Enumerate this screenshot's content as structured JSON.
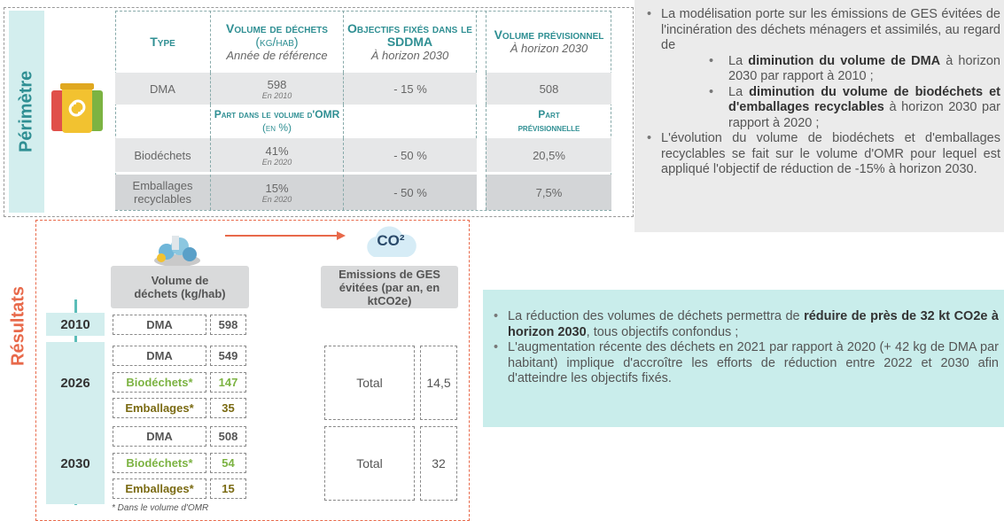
{
  "perimetre": {
    "label": "Périmètre",
    "table": {
      "header": [
        {
          "title": "Type"
        },
        {
          "title": "Volume de déchets",
          "unit": "(kg/hab)",
          "note": "Année de référence"
        },
        {
          "title": "Objectifs fixés dans le SDDMA",
          "note": "À horizon 2030"
        },
        {
          "title": "Volume prévisionnel",
          "note": "À horizon 2030"
        }
      ],
      "subheader": {
        "volume": "Part dans le volume d'OMR",
        "volume_unit": "(en %)",
        "forecast": "Part prévisionnelle"
      },
      "rows": [
        {
          "type": "DMA",
          "volume": "598",
          "volume_note": "En 2010",
          "objective": "- 15 %",
          "forecast": "508"
        },
        {
          "type": "Biodéchets",
          "volume": "41%",
          "volume_note": "En 2020",
          "objective": "- 50 %",
          "forecast": "20,5%"
        },
        {
          "type": "Emballages recyclables",
          "volume": "15%",
          "volume_note": "En 2020",
          "objective": "- 50 %",
          "forecast": "7,5%"
        }
      ]
    }
  },
  "summary": {
    "bullets": [
      {
        "segments": [
          {
            "text": "La modélisation porte sur les émissions de GES évitées de l'incinération des déchets ménagers et assimilés, au regard de"
          }
        ],
        "sub": [
          {
            "segments": [
              {
                "text": "La "
              },
              {
                "text": "diminution du volume de DMA",
                "bold": true
              },
              {
                "text": " à horizon 2030 par rapport à 2010 ;"
              }
            ]
          },
          {
            "segments": [
              {
                "text": "La "
              },
              {
                "text": "diminution du volume de biodéchets et d'emballages recyclables",
                "bold": true
              },
              {
                "text": " à horizon 2030 par rapport à 2020 ;"
              }
            ]
          }
        ]
      },
      {
        "segments": [
          {
            "text": "L'évolution du volume de biodéchets et d'emballages recyclables se fait sur le volume d'OMR pour lequel est appliqué l'objectif de réduction de -15% à horizon 2030."
          }
        ]
      }
    ]
  },
  "resultats": {
    "label": "Résultats",
    "volume_header": "Volume de déchets (kg/hab)",
    "emissions_header": "Emissions de GES évitées (par an, en ktCO2e)",
    "co2_icon": "CO²",
    "years": [
      {
        "year": "2010",
        "rows": [
          {
            "type": "DMA",
            "value": "598",
            "color": "#555555"
          }
        ]
      },
      {
        "year": "2026",
        "rows": [
          {
            "type": "DMA",
            "value": "549",
            "color": "#555555"
          },
          {
            "type": "Biodéchets*",
            "value": "147",
            "color": "#7cb342"
          },
          {
            "type": "Emballages*",
            "value": "35",
            "color": "#7a6a12"
          }
        ],
        "total": {
          "label": "Total",
          "value": "14,5"
        }
      },
      {
        "year": "2030",
        "rows": [
          {
            "type": "DMA",
            "value": "508",
            "color": "#555555"
          },
          {
            "type": "Biodéchets*",
            "value": "54",
            "color": "#7cb342"
          },
          {
            "type": "Emballages*",
            "value": "15",
            "color": "#7a6a12"
          }
        ],
        "total": {
          "label": "Total",
          "value": "32"
        }
      }
    ],
    "footnote": "* Dans le volume d'OMR"
  },
  "conclusion": {
    "bullets": [
      {
        "segments": [
          {
            "text": "La réduction des volumes de déchets permettra de "
          },
          {
            "text": "réduire de près de 32 kt CO2e à horizon 2030",
            "bold": true
          },
          {
            "text": ", tous objectifs confondus ;"
          }
        ]
      },
      {
        "segments": [
          {
            "text": "L'augmentation récente des déchets en 2021 par rapport à 2020 (+ 42 kg de DMA par habitant) implique d'accroître les efforts de réduction entre 2022 et 2030 afin d'atteindre les objectifs fixés."
          }
        ]
      }
    ]
  }
}
